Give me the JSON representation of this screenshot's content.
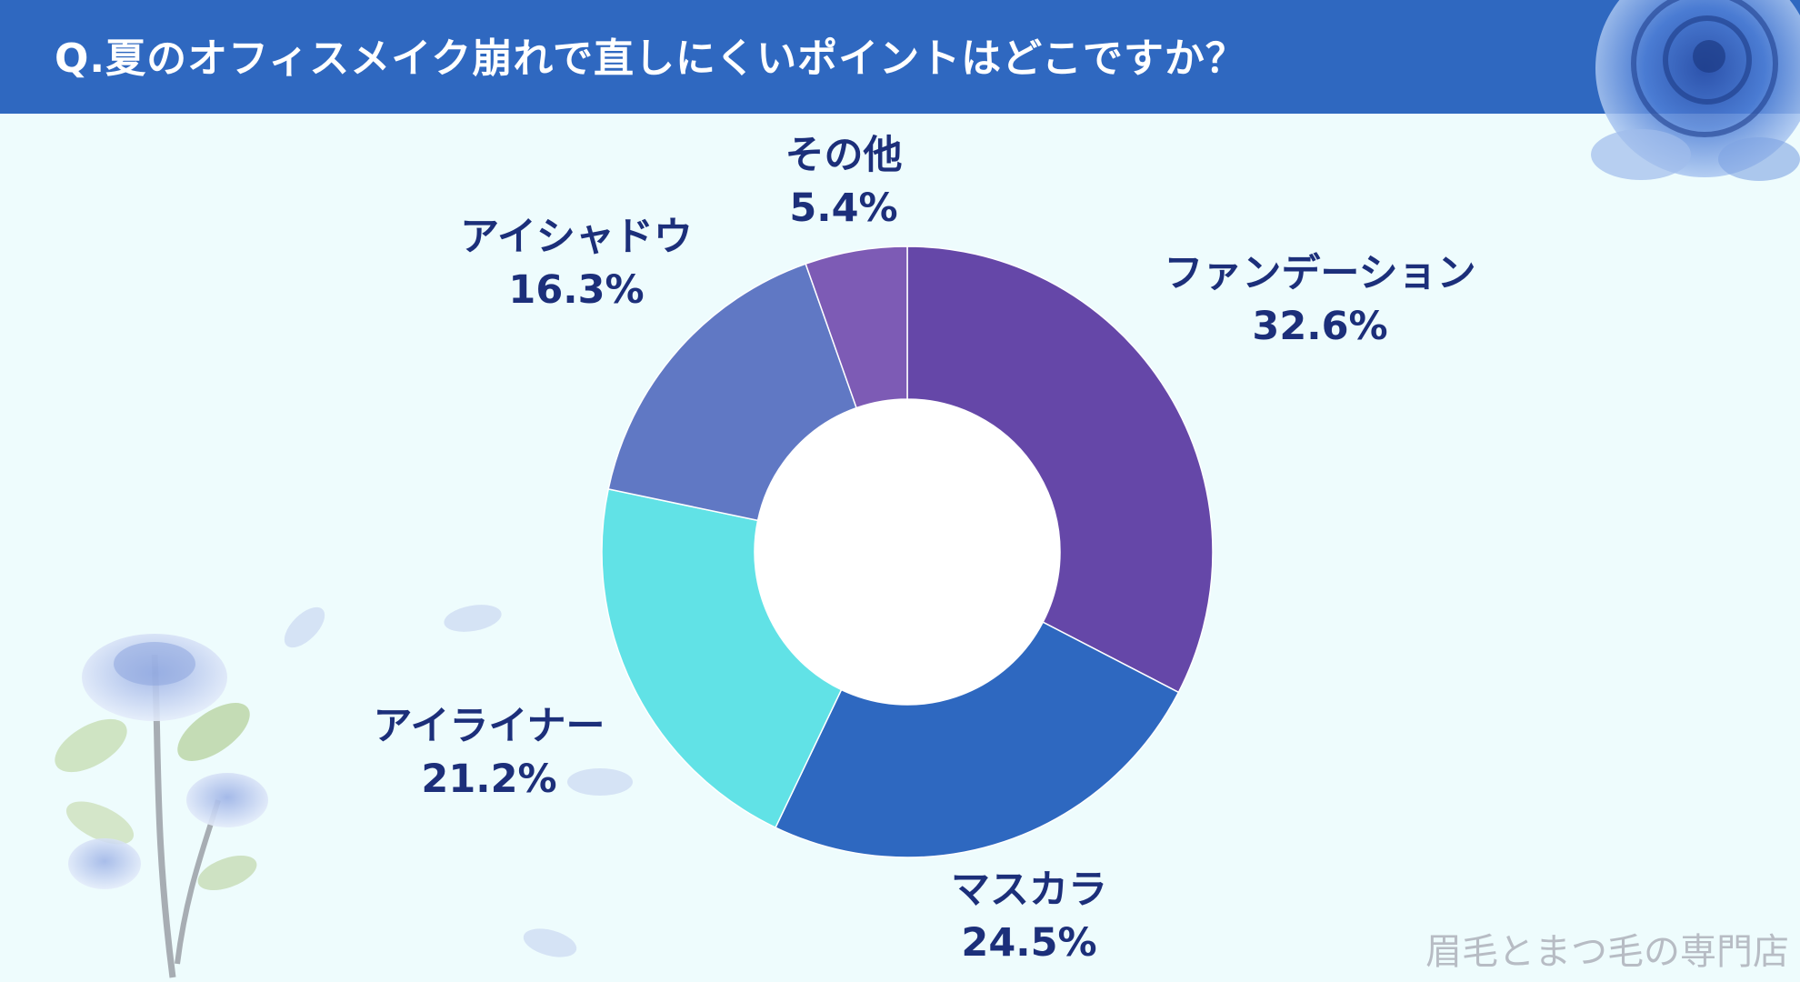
{
  "header": {
    "title": "Q.夏のオフィスメイク崩れで直しにくいポイントはどこですか？",
    "bg_color": "#2f68c0"
  },
  "chart_data": {
    "type": "pie",
    "donut": true,
    "start_angle_deg": 0,
    "direction": "clockwise",
    "slices": [
      {
        "label": "ファンデーション",
        "value": 32.6,
        "value_label": "32.6%",
        "color": "#6547a8"
      },
      {
        "label": "マスカラ",
        "value": 24.5,
        "value_label": "24.5%",
        "color": "#2e68c0"
      },
      {
        "label": "アイライナー",
        "value": 21.2,
        "value_label": "21.2%",
        "color": "#61e2e6"
      },
      {
        "label": "アイシャドウ",
        "value": 16.3,
        "value_label": "16.3%",
        "color": "#6078c4"
      },
      {
        "label": "その他",
        "value": 5.4,
        "value_label": "5.4%",
        "color": "#7d5bb5"
      }
    ]
  },
  "footer": {
    "brand": "眉毛とまつ毛の専門店"
  },
  "decorations": [
    "blue-rose-icon",
    "rose-branch-icon",
    "petal-icon"
  ]
}
